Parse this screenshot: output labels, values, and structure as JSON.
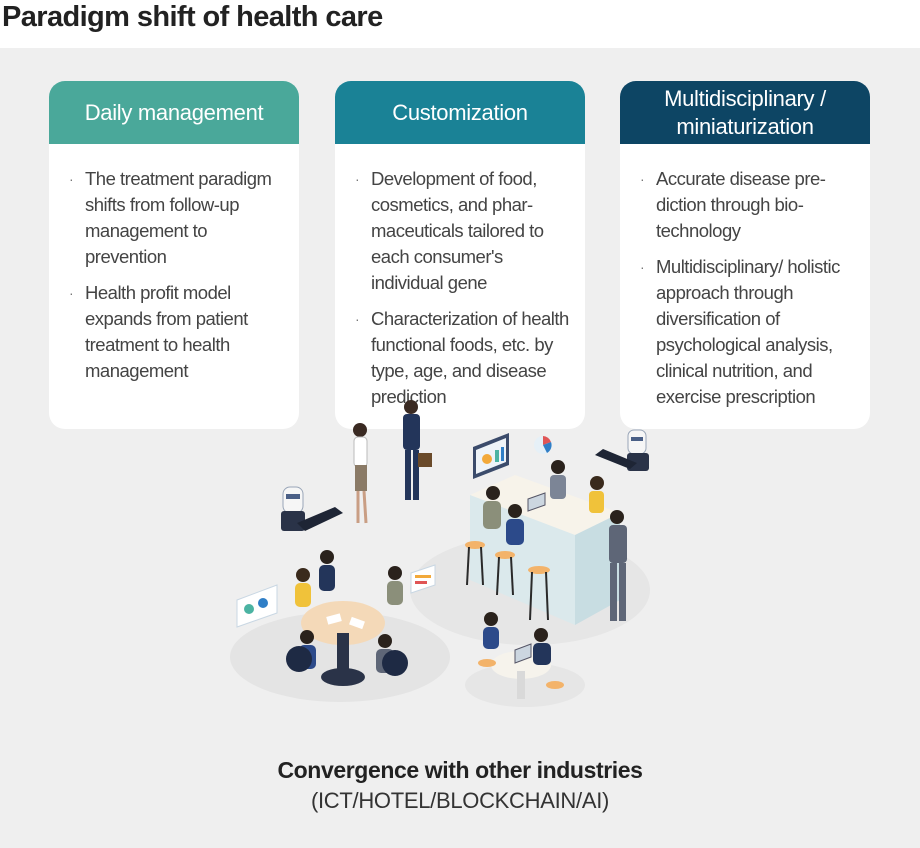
{
  "title": "Paradigm shift of health care",
  "colors": {
    "panel_bg": "#efefef",
    "card1_header": "#4aa89a",
    "card2_header": "#1a8296",
    "card3_header": "#0d4564"
  },
  "cards": [
    {
      "header": "Daily management",
      "items": [
        "The treatment paradigm shifts from follow-up management to prevention",
        "Health profit model expands from patient treatment to health management"
      ]
    },
    {
      "header": "Customization",
      "items": [
        "Development of food, cosmetics, and phar-maceuticals tailored to each consumer's individual gene",
        "Characterization of health functional foods, etc. by type, age, and disease prediction"
      ]
    },
    {
      "header": "Multidisciplinary / miniaturization",
      "items": [
        "Accurate disease pre-diction through bio-technology",
        "Multidisciplinary/ holistic approach through diversification of psychological analysis, clinical nutrition, and exercise prescription"
      ]
    }
  ],
  "caption": {
    "title": "Convergence with other industries",
    "subtitle": "(ICT/HOTEL/BLOCKCHAIN/AI)"
  },
  "bullet": "·"
}
